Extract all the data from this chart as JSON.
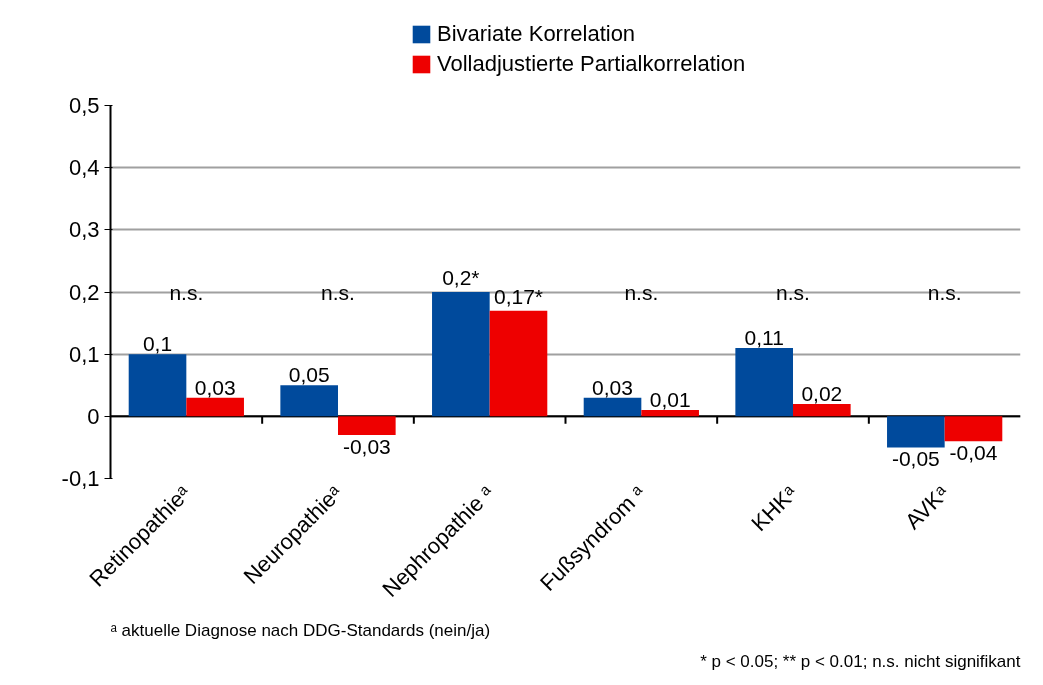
{
  "chart_data": {
    "type": "bar",
    "categories": [
      "Retinopathieᵃ",
      "Neuropathieᵃ",
      "Nephropathie ᵃ",
      "Fußsyndrom ᵃ",
      "KHKᵃ",
      "AVKᵃ"
    ],
    "series": [
      {
        "name": "Bivariate Korrelation",
        "color": "#004a9c",
        "values": [
          0.1,
          0.05,
          0.2,
          0.03,
          0.11,
          -0.05
        ],
        "value_labels": [
          "0,1",
          "0,05",
          "0,2*",
          "0,03",
          "0,11",
          "-0,05"
        ]
      },
      {
        "name": "Volladjustierte Partialkorrelation",
        "color": "#ee0000",
        "values": [
          0.03,
          -0.03,
          0.17,
          0.01,
          0.02,
          -0.04
        ],
        "value_labels": [
          "0,03",
          "-0,03",
          "0,17*",
          "0,01",
          "0,02",
          "-0,04"
        ]
      }
    ],
    "ylim": [
      -0.1,
      0.5
    ],
    "yticks": [
      {
        "value": -0.1,
        "label": "-0,1"
      },
      {
        "value": 0,
        "label": "0"
      },
      {
        "value": 0.1,
        "label": "0,1"
      },
      {
        "value": 0.2,
        "label": "0,2"
      },
      {
        "value": 0.3,
        "label": "0,3"
      },
      {
        "value": 0.4,
        "label": "0,4"
      },
      {
        "value": 0.5,
        "label": "0,5"
      }
    ],
    "grid": "y",
    "legend": "top",
    "annotations": [
      "n.s.",
      "n.s.",
      "n.s.",
      "n.s.",
      "n.s.",
      "ᵃ aktuelle Diagnose nach DDG-Standards (nein/ja)",
      "* p < 0.05; ** p < 0.01; n.s. nicht signifikant"
    ]
  }
}
